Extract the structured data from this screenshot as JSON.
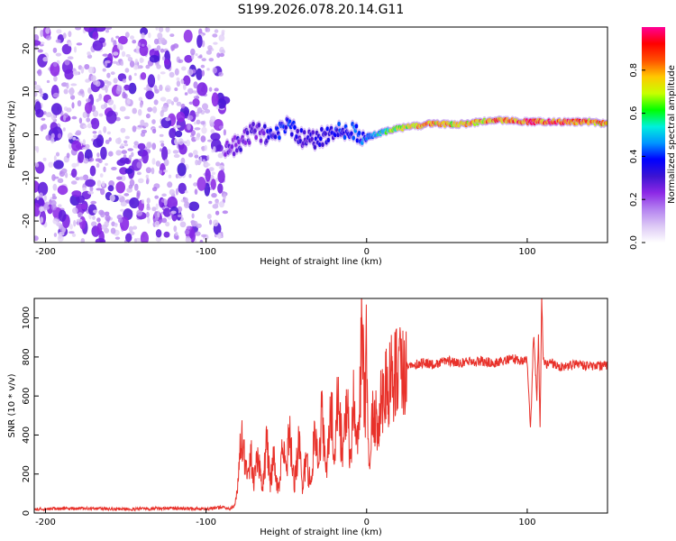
{
  "title": "S199.2026.078.20.14.G11",
  "chart_data": [
    {
      "type": "heatmap",
      "xlabel": "Height of straight line (km)",
      "ylabel": "Frequency (Hz)",
      "xlim": [
        -207,
        150
      ],
      "ylim": [
        -25,
        25
      ],
      "xticks": [
        -200,
        -100,
        0,
        100
      ],
      "yticks": [
        20,
        10,
        0,
        -10,
        -20
      ],
      "colorbar": {
        "label": "Normalized spectral amplitude",
        "range": [
          0,
          1
        ],
        "ticks": [
          "0.0",
          "0.2",
          "0.4",
          "0.6",
          "0.8"
        ],
        "colors": [
          "#ffffff",
          "#dcc8f5",
          "#b482f0",
          "#8c28e6",
          "#3c14d2",
          "#0000ff",
          "#0096ff",
          "#00f0dc",
          "#00ff00",
          "#c8ff00",
          "#ffc800",
          "#ff5000",
          "#ff0000",
          "#ff0096"
        ]
      },
      "noise_region_km": [
        -207,
        -88
      ],
      "ridge": [
        {
          "x": -88,
          "f": -3.5,
          "a": 0.25
        },
        {
          "x": -80,
          "f": -2.0,
          "a": 0.3
        },
        {
          "x": -70,
          "f": 1.0,
          "a": 0.3
        },
        {
          "x": -60,
          "f": -0.5,
          "a": 0.35
        },
        {
          "x": -50,
          "f": 2.0,
          "a": 0.45
        },
        {
          "x": -40,
          "f": -0.5,
          "a": 0.35
        },
        {
          "x": -30,
          "f": -1.0,
          "a": 0.35
        },
        {
          "x": -20,
          "f": 0.5,
          "a": 0.4
        },
        {
          "x": -10,
          "f": 1.5,
          "a": 0.45
        },
        {
          "x": -5,
          "f": 0.5,
          "a": 0.45
        },
        {
          "x": 0,
          "f": -0.5,
          "a": 0.5
        },
        {
          "x": 10,
          "f": 0.5,
          "a": 0.6
        },
        {
          "x": 20,
          "f": 1.5,
          "a": 0.75
        },
        {
          "x": 40,
          "f": 2.5,
          "a": 0.85
        },
        {
          "x": 60,
          "f": 2.5,
          "a": 0.8
        },
        {
          "x": 80,
          "f": 3.5,
          "a": 0.9
        },
        {
          "x": 100,
          "f": 3.0,
          "a": 0.95
        },
        {
          "x": 120,
          "f": 3.0,
          "a": 0.95
        },
        {
          "x": 140,
          "f": 3.0,
          "a": 0.9
        },
        {
          "x": 150,
          "f": 2.5,
          "a": 0.85
        }
      ]
    },
    {
      "type": "line",
      "xlabel": "Height of straight line (km)",
      "ylabel": "SNR (10 * v/v)",
      "xlim": [
        -207,
        150
      ],
      "ylim": [
        0,
        1100
      ],
      "xticks": [
        -200,
        -100,
        0,
        100
      ],
      "yticks": [
        0,
        200,
        400,
        600,
        800,
        1000
      ],
      "color": "#e8312a",
      "series": [
        {
          "name": "SNR",
          "x": [
            -207,
            -180,
            -150,
            -120,
            -100,
            -90,
            -85,
            -82,
            -80,
            -78,
            -75,
            -72,
            -70,
            -68,
            -65,
            -62,
            -60,
            -58,
            -55,
            -52,
            -50,
            -48,
            -45,
            -42,
            -40,
            -38,
            -35,
            -32,
            -30,
            -28,
            -25,
            -22,
            -20,
            -18,
            -15,
            -12,
            -10,
            -8,
            -5,
            -3,
            -1,
            0,
            1,
            2,
            3,
            5,
            8,
            10,
            12,
            15,
            18,
            20,
            25,
            30,
            35,
            40,
            50,
            60,
            70,
            80,
            90,
            100,
            102,
            104,
            106,
            107,
            108,
            109,
            110,
            112,
            115,
            120,
            130,
            140,
            150
          ],
          "values": [
            20,
            25,
            20,
            25,
            20,
            30,
            20,
            40,
            150,
            430,
            200,
            300,
            150,
            320,
            120,
            380,
            150,
            300,
            100,
            350,
            200,
            430,
            150,
            380,
            100,
            280,
            150,
            450,
            220,
            500,
            200,
            550,
            250,
            600,
            300,
            550,
            250,
            580,
            320,
            950,
            500,
            960,
            350,
            230,
            480,
            450,
            520,
            600,
            640,
            700,
            720,
            740,
            760,
            760,
            770,
            760,
            780,
            770,
            780,
            770,
            790,
            780,
            420,
            920,
            600,
            900,
            430,
            1100,
            780,
            760,
            770,
            750,
            760,
            750,
            760
          ]
        }
      ]
    }
  ]
}
